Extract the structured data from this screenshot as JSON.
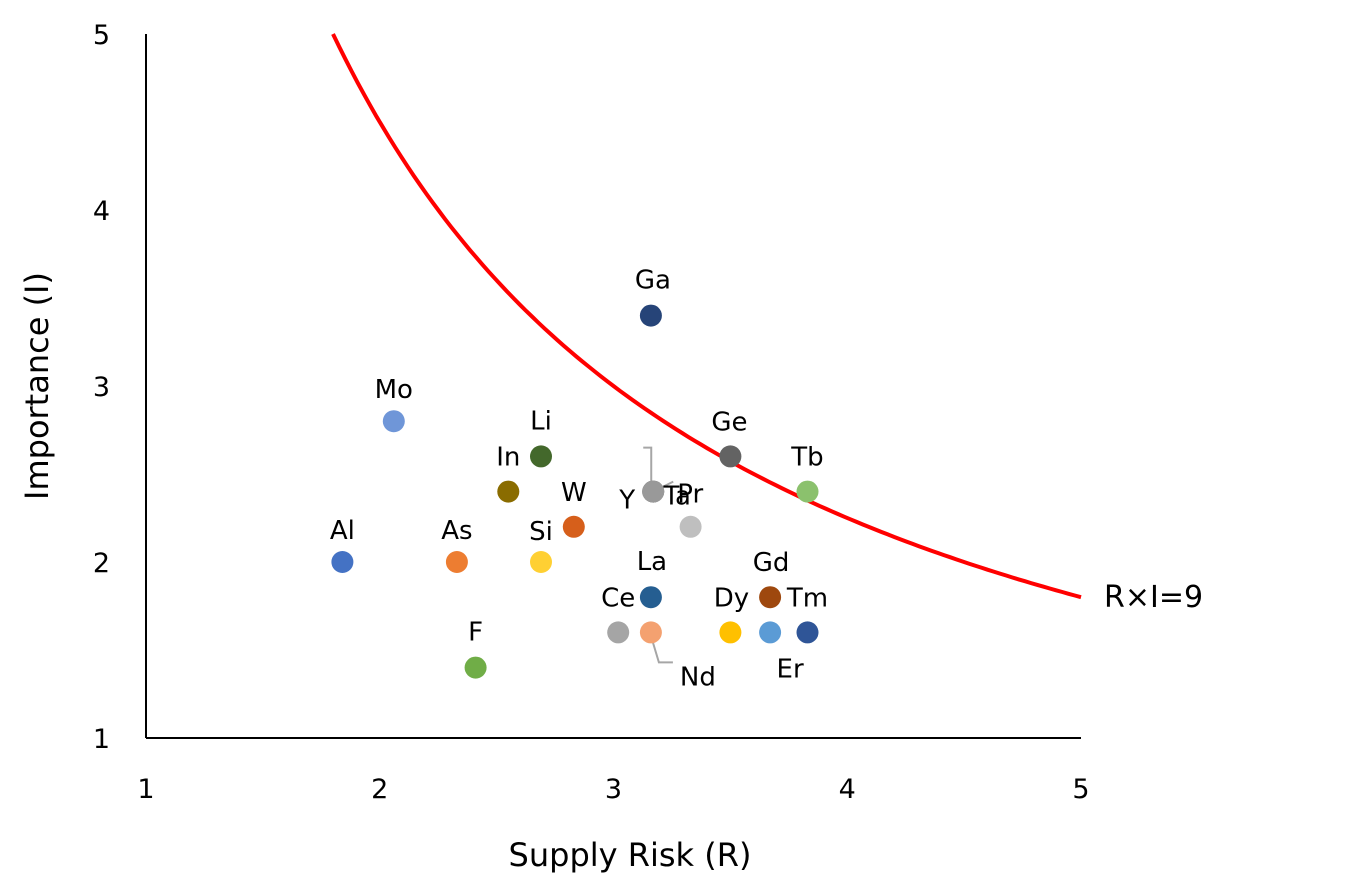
{
  "chart_data": {
    "type": "scatter",
    "title": "",
    "xlabel": "Supply Risk (R)",
    "ylabel": "Importance (I)",
    "xlim": [
      1,
      5
    ],
    "ylim": [
      1,
      5
    ],
    "xticks": [
      "1",
      "2",
      "3",
      "4",
      "5"
    ],
    "yticks": [
      "1",
      "2",
      "3",
      "4",
      "5"
    ],
    "grid": false,
    "series": [
      {
        "name": "Al",
        "x": 1.84,
        "y": 2.0,
        "color": "#4472c4"
      },
      {
        "name": "Mo",
        "x": 2.06,
        "y": 2.8,
        "color": "#6f96d8"
      },
      {
        "name": "As",
        "x": 2.33,
        "y": 2.0,
        "color": "#ed7d31"
      },
      {
        "name": "F",
        "x": 2.41,
        "y": 1.4,
        "color": "#70ad47"
      },
      {
        "name": "In",
        "x": 2.55,
        "y": 2.4,
        "color": "#8a6c00"
      },
      {
        "name": "Li",
        "x": 2.69,
        "y": 2.6,
        "color": "#43682b"
      },
      {
        "name": "Si",
        "x": 2.69,
        "y": 2.0,
        "color": "#ffd033"
      },
      {
        "name": "W",
        "x": 2.83,
        "y": 2.2,
        "color": "#d65f1b"
      },
      {
        "name": "Ce",
        "x": 3.02,
        "y": 1.6,
        "color": "#a5a5a5"
      },
      {
        "name": "Ga",
        "x": 3.16,
        "y": 3.4,
        "color": "#264478"
      },
      {
        "name": "La",
        "x": 3.16,
        "y": 1.8,
        "color": "#255e91"
      },
      {
        "name": "Nd",
        "x": 3.16,
        "y": 1.6,
        "color": "#f4a170"
      },
      {
        "name": "Y",
        "x": 3.17,
        "y": 2.4,
        "color": "#7a7a7a"
      },
      {
        "name": "Ta",
        "x": 3.17,
        "y": 2.4,
        "color": "#8c8c8c"
      },
      {
        "name": "Pr",
        "x": 3.17,
        "y": 2.4,
        "color": "#999999"
      },
      {
        "name": "",
        "x": 3.33,
        "y": 2.2,
        "color": "#bfbfbf"
      },
      {
        "name": "Ge",
        "x": 3.5,
        "y": 2.6,
        "color": "#636363"
      },
      {
        "name": "Dy",
        "x": 3.5,
        "y": 1.6,
        "color": "#ffc000"
      },
      {
        "name": "Gd",
        "x": 3.67,
        "y": 1.8,
        "color": "#9e480e"
      },
      {
        "name": "Er",
        "x": 3.67,
        "y": 1.6,
        "color": "#5b9bd5"
      },
      {
        "name": "Tb",
        "x": 3.83,
        "y": 2.4,
        "color": "#8bc16d"
      },
      {
        "name": "Tm",
        "x": 3.83,
        "y": 1.6,
        "color": "#2f5597"
      }
    ],
    "curve": {
      "label": "R×I=9",
      "product": 9,
      "x_range": [
        1.8,
        5
      ],
      "color": "#ff0000"
    }
  }
}
